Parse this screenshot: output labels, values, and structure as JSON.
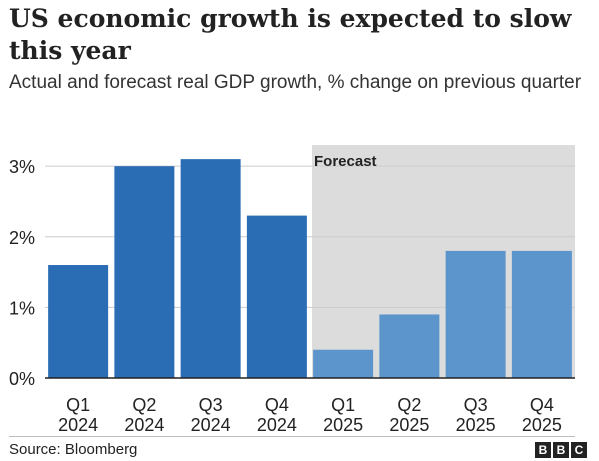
{
  "title": "US economic growth is expected to slow this year",
  "subtitle": "Actual and forecast real GDP growth, % change on previous quarter",
  "source": "Source: Bloomberg",
  "logo_letters": [
    "B",
    "B",
    "C"
  ],
  "colors": {
    "actual_bar": "#2a6db5",
    "forecast_bar": "#5b95cc",
    "forecast_band": "#dcdcdc",
    "grid": "#cccccc",
    "axis": "#222222",
    "text": "#222222"
  },
  "chart_data": {
    "type": "bar",
    "categories": [
      [
        "Q1",
        "2024"
      ],
      [
        "Q2",
        "2024"
      ],
      [
        "Q3",
        "2024"
      ],
      [
        "Q4",
        "2024"
      ],
      [
        "Q1",
        "2025"
      ],
      [
        "Q2",
        "2025"
      ],
      [
        "Q3",
        "2025"
      ],
      [
        "Q4",
        "2025"
      ]
    ],
    "values": [
      1.6,
      3.0,
      3.1,
      2.3,
      0.4,
      0.9,
      1.8,
      1.8
    ],
    "forecast": [
      false,
      false,
      false,
      false,
      true,
      true,
      true,
      true
    ],
    "forecast_label": "Forecast",
    "y_ticks": [
      0,
      1,
      2,
      3
    ],
    "y_tick_labels": [
      "0%",
      "1%",
      "2%",
      "3%"
    ],
    "ylim": [
      0,
      3.3
    ],
    "grid": true,
    "xlabel": "",
    "ylabel": ""
  }
}
